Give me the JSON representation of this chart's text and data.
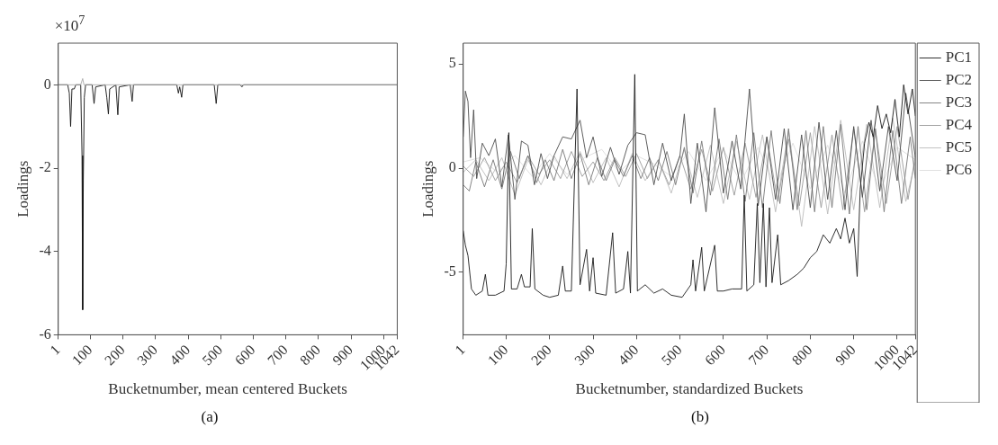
{
  "chart_data": [
    {
      "type": "line",
      "xlabel": "Bucketnumber, mean centered Buckets",
      "ylabel": "Loadings",
      "annotations": [
        "×10$^{7}$",
        "(a)"
      ],
      "xlim": [
        1,
        1042
      ],
      "xticks": [
        1,
        100,
        200,
        300,
        400,
        500,
        600,
        700,
        800,
        900,
        1000,
        1042
      ],
      "ylim": [
        -6,
        1
      ],
      "yticks": [
        -6,
        -4,
        -2,
        0
      ],
      "grid": false,
      "legend": false,
      "marker": "none",
      "line_style": "solid",
      "series": [
        {
          "color": "#aaaaaa",
          "x": [
            1,
            70,
            76,
            80,
            1042
          ],
          "values": [
            0,
            0,
            0.15,
            0,
            0
          ]
        },
        {
          "color": "#111111",
          "x": [
            1,
            30,
            35,
            39,
            43,
            50,
            55,
            70,
            74,
            76,
            78,
            81,
            85,
            105,
            111,
            116,
            145,
            150,
            155,
            159,
            178,
            184,
            188,
            222,
            228,
            232,
            365,
            370,
            374,
            380,
            384,
            480,
            486,
            491,
            560,
            565,
            570,
            1042
          ],
          "values": [
            0,
            0,
            -0.2,
            -1.0,
            -0.1,
            -0.1,
            0,
            0,
            -1.7,
            -5.4,
            -2.3,
            -0.3,
            0,
            0,
            -0.45,
            -0.05,
            0,
            -0.3,
            -0.7,
            -0.1,
            0,
            -0.72,
            -0.05,
            0,
            -0.4,
            0,
            0,
            -0.2,
            -0.05,
            -0.3,
            0,
            0,
            -0.45,
            0,
            0,
            -0.05,
            0,
            0
          ]
        }
      ]
    },
    {
      "type": "line",
      "xlabel": "Bucketnumber, standardized Buckets",
      "ylabel": "Loadings",
      "annotations": [
        "(b)"
      ],
      "xlim": [
        1,
        1042
      ],
      "xticks": [
        1,
        100,
        200,
        300,
        400,
        500,
        600,
        700,
        800,
        900,
        1000,
        1042
      ],
      "ylim": [
        -8,
        6
      ],
      "yticks": [
        -5,
        0,
        5
      ],
      "grid": false,
      "legend": "top right",
      "marker": "none",
      "line_style": "solid",
      "series": [
        {
          "name": "PC6",
          "color": "#dddddd",
          "x": [
            1,
            40,
            80,
            120,
            160,
            200,
            240,
            280,
            320,
            360,
            400,
            440,
            480,
            520,
            560,
            600,
            640,
            680,
            720,
            760,
            800,
            840,
            880,
            920,
            960,
            1000,
            1042
          ],
          "values": [
            0.3,
            0.5,
            -0.2,
            0.6,
            -0.4,
            0.7,
            -0.3,
            0.5,
            0.9,
            -0.2,
            0.6,
            0.2,
            -0.4,
            0.8,
            -0.6,
            0.9,
            -0.7,
            1.0,
            -0.9,
            1.2,
            -1.0,
            1.1,
            -1.2,
            1.3,
            -1.1,
            1.0,
            0.4
          ]
        },
        {
          "name": "PC5",
          "color": "#bbbbbb",
          "x": [
            1,
            30,
            60,
            90,
            120,
            150,
            180,
            210,
            240,
            270,
            300,
            330,
            360,
            390,
            420,
            450,
            480,
            510,
            540,
            570,
            600,
            630,
            660,
            690,
            720,
            750,
            780,
            810,
            840,
            870,
            900,
            930,
            960,
            990,
            1020,
            1042
          ],
          "values": [
            -0.2,
            0.4,
            -0.6,
            0.5,
            -1.3,
            0.4,
            -0.8,
            0.6,
            -0.5,
            0.8,
            -0.7,
            0.5,
            -0.9,
            0.7,
            -0.6,
            0.4,
            -1.2,
            0.9,
            -1.4,
            1.1,
            -1.7,
            1.3,
            -1.5,
            1.6,
            -2.1,
            1.8,
            -2.8,
            2.0,
            -2.2,
            2.3,
            -2.0,
            2.1,
            -1.9,
            2.4,
            -1.6,
            0.3
          ]
        },
        {
          "name": "PC4",
          "color": "#999999",
          "x": [
            1,
            25,
            50,
            75,
            100,
            125,
            150,
            175,
            200,
            225,
            250,
            275,
            300,
            325,
            350,
            375,
            400,
            425,
            450,
            475,
            500,
            525,
            550,
            575,
            600,
            625,
            650,
            675,
            700,
            725,
            750,
            775,
            800,
            825,
            850,
            875,
            900,
            925,
            950,
            975,
            1000,
            1025,
            1042
          ],
          "values": [
            0.1,
            -0.4,
            0.5,
            -0.6,
            0.3,
            -0.7,
            0.6,
            -0.3,
            0.4,
            -0.5,
            0.8,
            -0.4,
            0.3,
            -0.6,
            0.5,
            -0.4,
            0.7,
            -0.5,
            0.4,
            -0.8,
            0.6,
            -1.0,
            0.9,
            -1.1,
            1.0,
            -1.3,
            1.2,
            -1.4,
            1.5,
            -1.6,
            1.4,
            -1.8,
            1.7,
            -1.9,
            1.6,
            -2.0,
            1.9,
            -2.1,
            1.8,
            -1.7,
            2.0,
            -1.5,
            0.6
          ]
        },
        {
          "name": "PC3",
          "color": "#777777",
          "x": [
            1,
            15,
            30,
            50,
            70,
            90,
            110,
            130,
            150,
            170,
            190,
            210,
            230,
            250,
            270,
            290,
            310,
            330,
            350,
            370,
            390,
            410,
            430,
            450,
            470,
            490,
            510,
            530,
            550,
            570,
            590,
            610,
            630,
            650,
            670,
            690,
            710,
            730,
            750,
            770,
            790,
            810,
            830,
            850,
            870,
            890,
            910,
            930,
            950,
            970,
            990,
            1010,
            1030,
            1042
          ],
          "values": [
            -0.8,
            -1.1,
            0.3,
            -0.9,
            0.4,
            -1.0,
            0.8,
            -0.5,
            0.6,
            -0.7,
            0.4,
            -0.6,
            0.9,
            -0.5,
            0.7,
            -0.8,
            0.5,
            -0.6,
            0.4,
            -0.4,
            0.6,
            -0.5,
            0.5,
            -0.6,
            0.8,
            -0.8,
            1.0,
            -1.2,
            1.3,
            -1.3,
            1.4,
            -1.5,
            1.6,
            -1.6,
            1.7,
            -1.9,
            1.8,
            -1.7,
            1.9,
            -2.0,
            1.8,
            -2.1,
            2.0,
            -1.9,
            2.1,
            -2.2,
            2.0,
            -2.0,
            1.9,
            -2.1,
            1.8,
            -1.7,
            1.5,
            -0.5
          ]
        },
        {
          "name": "PC2",
          "color": "#4d4d4d",
          "x": [
            1,
            6,
            12,
            18,
            25,
            32,
            45,
            60,
            75,
            90,
            105,
            120,
            135,
            150,
            165,
            180,
            195,
            210,
            230,
            250,
            270,
            285,
            300,
            320,
            340,
            360,
            380,
            400,
            420,
            440,
            460,
            480,
            500,
            510,
            525,
            540,
            560,
            580,
            600,
            620,
            640,
            660,
            680,
            700,
            720,
            740,
            760,
            780,
            800,
            820,
            840,
            860,
            880,
            900,
            920,
            940,
            960,
            980,
            1000,
            1020,
            1042
          ],
          "values": [
            1.5,
            3.7,
            3.2,
            0.5,
            2.8,
            -0.5,
            1.2,
            0.6,
            1.4,
            -0.9,
            1.6,
            -1.5,
            1.3,
            1.1,
            -0.8,
            0.7,
            -0.5,
            0.6,
            1.5,
            1.4,
            2.3,
            0.5,
            1.5,
            -0.4,
            1.0,
            -0.3,
            1.1,
            1.7,
            1.6,
            -0.8,
            1.2,
            -0.6,
            0.6,
            2.6,
            -1.7,
            1.2,
            -2.1,
            2.9,
            -1.2,
            1.3,
            -1.0,
            3.8,
            -1.8,
            1.5,
            -1.5,
            1.9,
            -2.0,
            1.6,
            -1.9,
            2.2,
            -1.5,
            1.8,
            -2.0,
            2.0,
            -1.4,
            2.3,
            -1.1,
            2.0,
            -0.6,
            3.6,
            0.5
          ]
        },
        {
          "name": "PC1",
          "color": "#1a1a1a",
          "x": [
            1,
            6,
            12,
            20,
            30,
            45,
            52,
            58,
            75,
            95,
            100,
            106,
            112,
            125,
            135,
            142,
            155,
            160,
            166,
            185,
            200,
            220,
            230,
            236,
            250,
            263,
            270,
            285,
            292,
            300,
            306,
            330,
            345,
            352,
            370,
            380,
            386,
            396,
            402,
            420,
            440,
            460,
            480,
            505,
            525,
            530,
            536,
            550,
            556,
            580,
            586,
            600,
            620,
            642,
            648,
            654,
            670,
            678,
            684,
            692,
            698,
            706,
            712,
            725,
            732,
            750,
            770,
            785,
            800,
            815,
            830,
            845,
            860,
            870,
            880,
            890,
            900,
            908,
            915,
            925,
            935,
            945,
            955,
            965,
            975,
            985,
            995,
            1005,
            1015,
            1025,
            1035,
            1042
          ],
          "values": [
            -3,
            -3.7,
            -4.2,
            -5.8,
            -6.1,
            -5.9,
            -5.1,
            -6.1,
            -6.1,
            -5.9,
            -4.6,
            1.7,
            -5.8,
            -5.8,
            -5.1,
            -5.7,
            -5.7,
            -2.9,
            -5.8,
            -6.1,
            -6.2,
            -6.1,
            -4.7,
            -5.9,
            -5.9,
            3.8,
            -5.6,
            -3.9,
            -5.9,
            -4.3,
            -6.0,
            -6.1,
            -3.1,
            -6.0,
            -5.8,
            -4.0,
            -6.0,
            4.5,
            -5.9,
            -5.6,
            -6.0,
            -5.8,
            -6.1,
            -6.2,
            -5.6,
            -4.4,
            -5.9,
            -3.8,
            -5.9,
            -3.7,
            -5.9,
            -5.9,
            -5.8,
            -5.8,
            -1.3,
            -5.9,
            -5.6,
            -1.7,
            -5.5,
            -1.7,
            -5.7,
            -1.9,
            -5.5,
            -3.2,
            -5.6,
            -5.4,
            -5.1,
            -4.8,
            -4.3,
            -4.0,
            -3.2,
            -3.6,
            -2.9,
            -3.4,
            -2.4,
            -3.6,
            -2.9,
            -5.2,
            -1.0,
            1.2,
            2.2,
            1.5,
            3.0,
            1.9,
            2.6,
            1.7,
            3.3,
            1.5,
            4.0,
            2.6,
            3.8,
            2.5
          ]
        }
      ]
    }
  ]
}
